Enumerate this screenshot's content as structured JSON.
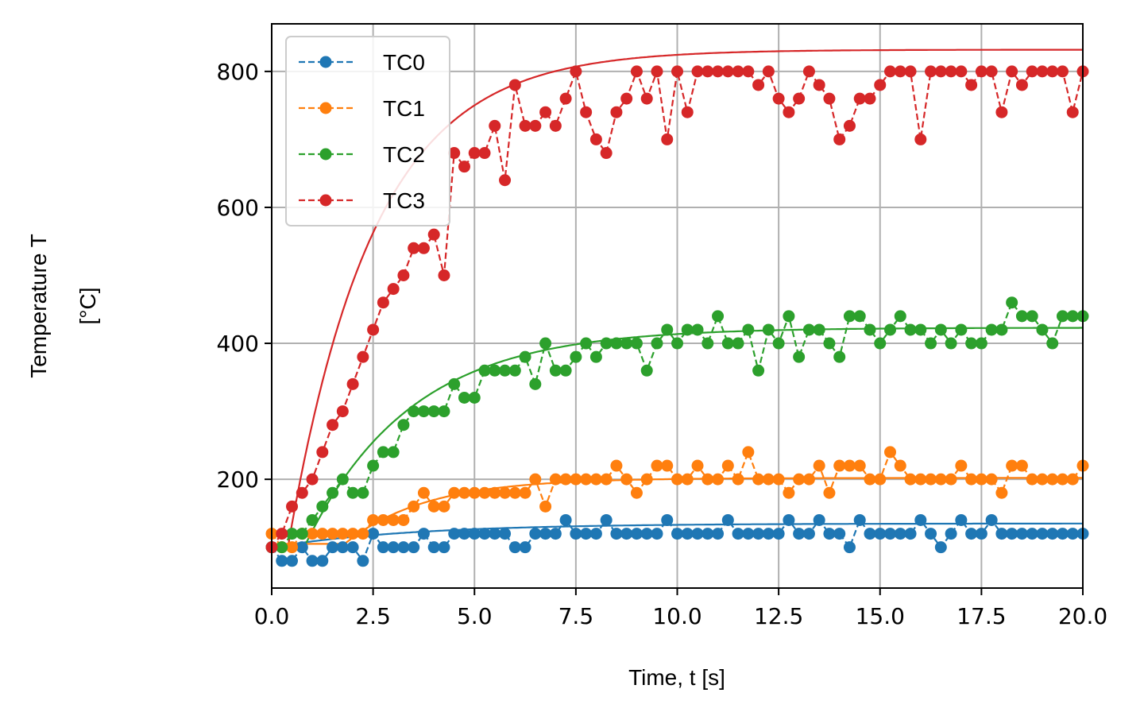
{
  "chart_data": {
    "type": "line",
    "title": "",
    "xlabel": "Time, t [s]",
    "ylabel_line1": "Temperature T",
    "ylabel_line2": "[°C]",
    "xlim": [
      0,
      20
    ],
    "ylim": [
      40,
      870
    ],
    "grid": true,
    "legend": "top-left",
    "x_ticks": [
      0,
      2.5,
      5,
      7.5,
      10,
      12.5,
      15,
      17.5,
      20
    ],
    "x_tick_labels": [
      "0.0",
      "2.5",
      "5.0",
      "7.5",
      "10.0",
      "12.5",
      "15.0",
      "17.5",
      "20.0"
    ],
    "y_ticks": [
      200,
      400,
      600,
      800
    ],
    "y_tick_labels": [
      "200",
      "400",
      "600",
      "800"
    ],
    "x": [
      0,
      0.25,
      0.5,
      0.75,
      1,
      1.25,
      1.5,
      1.75,
      2,
      2.25,
      2.5,
      2.75,
      3,
      3.25,
      3.5,
      3.75,
      4,
      4.25,
      4.5,
      4.75,
      5,
      5.25,
      5.5,
      5.75,
      6,
      6.25,
      6.5,
      6.75,
      7,
      7.25,
      7.5,
      7.75,
      8,
      8.25,
      8.5,
      8.75,
      9,
      9.25,
      9.5,
      9.75,
      10,
      10.25,
      10.5,
      10.75,
      11,
      11.25,
      11.5,
      11.75,
      12,
      12.25,
      12.5,
      12.75,
      13,
      13.25,
      13.5,
      13.75,
      14,
      14.25,
      14.5,
      14.75,
      15,
      15.25,
      15.5,
      15.75,
      16,
      16.25,
      16.5,
      16.75,
      17,
      17.25,
      17.5,
      17.75,
      18,
      18.25,
      18.5,
      18.75,
      19,
      19.25,
      19.5,
      19.75,
      20
    ],
    "series": [
      {
        "name": "TC0",
        "color": "#1f77b4",
        "values": [
          100,
          80,
          80,
          100,
          80,
          80,
          100,
          100,
          100,
          80,
          120,
          100,
          100,
          100,
          100,
          120,
          100,
          100,
          120,
          120,
          120,
          120,
          120,
          120,
          100,
          100,
          120,
          120,
          120,
          140,
          120,
          120,
          120,
          140,
          120,
          120,
          120,
          120,
          120,
          140,
          120,
          120,
          120,
          120,
          120,
          140,
          120,
          120,
          120,
          120,
          120,
          140,
          120,
          120,
          140,
          120,
          120,
          100,
          140,
          120,
          120,
          120,
          120,
          120,
          140,
          120,
          100,
          120,
          140,
          120,
          120,
          140,
          120,
          120,
          120,
          120,
          120,
          120,
          120,
          120,
          120
        ],
        "fit": {
          "T0": 100,
          "Tinf": 135,
          "tau": 3.5,
          "delay": 0
        }
      },
      {
        "name": "TC1",
        "color": "#ff7f0e",
        "values": [
          120,
          100,
          100,
          120,
          120,
          120,
          120,
          120,
          120,
          120,
          140,
          140,
          140,
          140,
          160,
          180,
          160,
          160,
          180,
          180,
          180,
          180,
          180,
          180,
          180,
          180,
          200,
          160,
          200,
          200,
          200,
          200,
          200,
          200,
          220,
          200,
          180,
          200,
          220,
          220,
          200,
          200,
          220,
          200,
          200,
          220,
          200,
          240,
          200,
          200,
          200,
          180,
          200,
          200,
          220,
          180,
          220,
          220,
          220,
          200,
          200,
          240,
          220,
          200,
          200,
          200,
          200,
          200,
          220,
          200,
          200,
          200,
          180,
          220,
          220,
          200,
          200,
          200,
          200,
          200,
          220
        ],
        "fit": {
          "T0": 105,
          "Tinf": 202,
          "tau": 2.0,
          "delay": 1.8
        }
      },
      {
        "name": "TC2",
        "color": "#2ca02c",
        "values": [
          100,
          100,
          120,
          120,
          140,
          160,
          180,
          200,
          180,
          180,
          220,
          240,
          240,
          280,
          300,
          300,
          300,
          300,
          340,
          320,
          320,
          360,
          360,
          360,
          360,
          380,
          340,
          400,
          360,
          360,
          380,
          400,
          380,
          400,
          400,
          400,
          400,
          360,
          400,
          420,
          400,
          420,
          420,
          400,
          440,
          400,
          400,
          420,
          360,
          420,
          400,
          440,
          380,
          420,
          420,
          400,
          380,
          440,
          440,
          420,
          400,
          420,
          440,
          420,
          420,
          400,
          420,
          400,
          420,
          400,
          400,
          420,
          420,
          460,
          440,
          440,
          420,
          400,
          440,
          440,
          440
        ],
        "fit": {
          "T0": 100,
          "Tinf": 423,
          "tau": 2.6,
          "delay": 0.8
        }
      },
      {
        "name": "TC3",
        "color": "#d62728",
        "values": [
          100,
          120,
          160,
          180,
          200,
          240,
          280,
          300,
          340,
          380,
          420,
          460,
          480,
          500,
          540,
          540,
          560,
          500,
          680,
          660,
          680,
          680,
          720,
          640,
          780,
          720,
          720,
          740,
          720,
          760,
          800,
          740,
          700,
          680,
          740,
          760,
          800,
          760,
          800,
          700,
          800,
          740,
          800,
          800,
          800,
          800,
          800,
          800,
          780,
          800,
          760,
          740,
          760,
          800,
          780,
          760,
          700,
          720,
          760,
          760,
          780,
          800,
          800,
          800,
          700,
          800,
          800,
          800,
          800,
          780,
          800,
          800,
          740,
          800,
          780,
          800,
          800,
          800,
          800,
          740,
          800
        ],
        "fit": {
          "T0": 100,
          "Tinf": 832,
          "tau": 2.1,
          "delay": 0.4
        }
      }
    ]
  }
}
